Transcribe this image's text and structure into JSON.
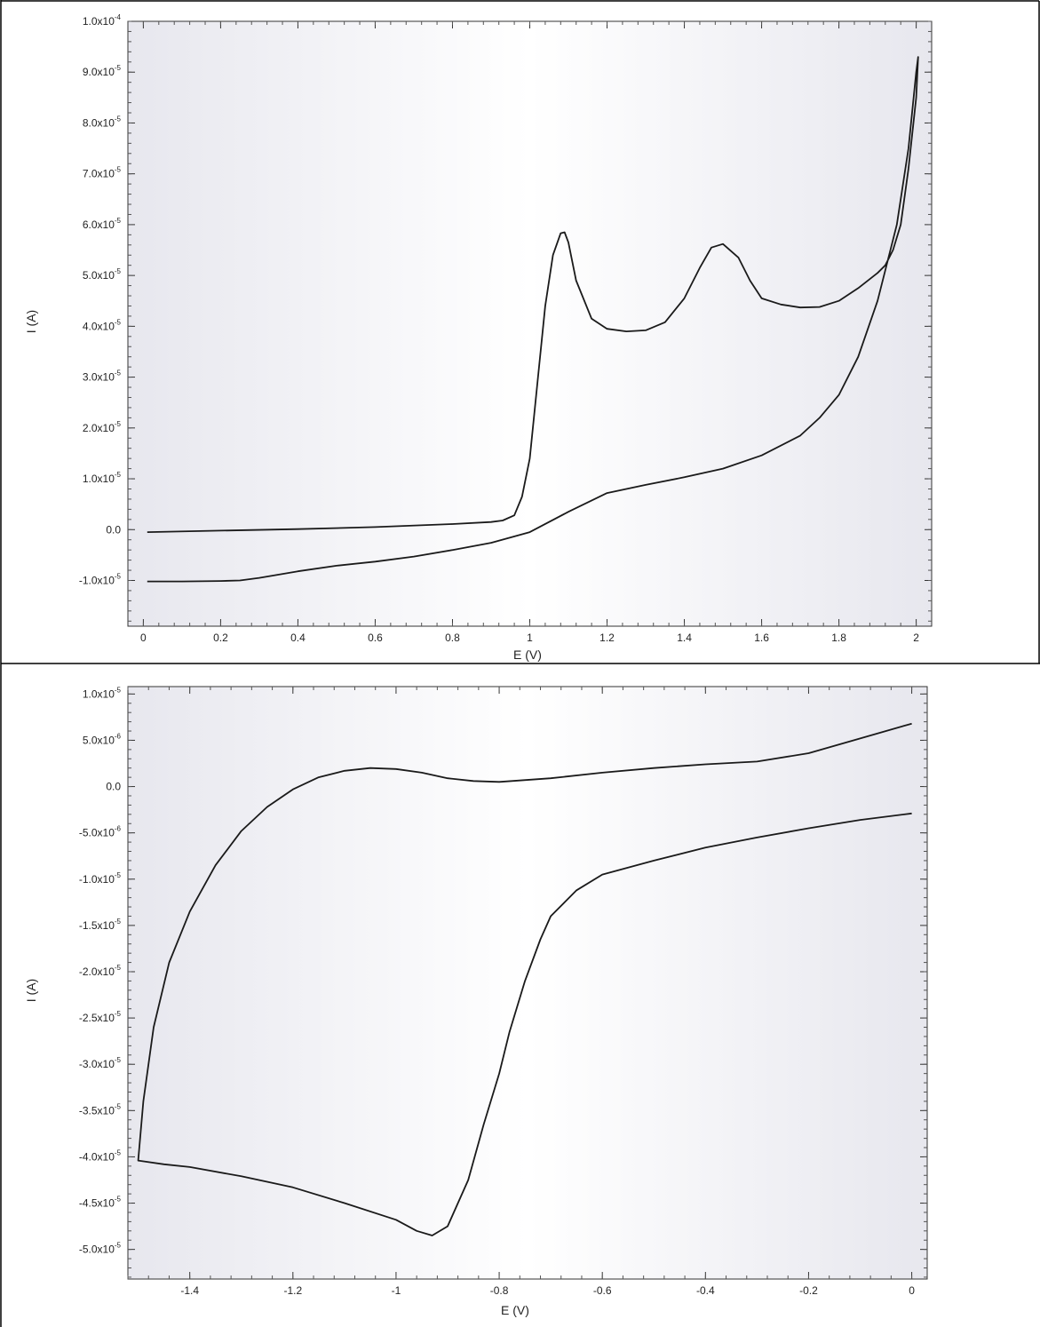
{
  "chart_data": [
    {
      "type": "line",
      "xlabel": "E (V)",
      "ylabel": "I (A)",
      "xlim": [
        -0.04,
        2.04
      ],
      "ylim": [
        -1.9e-05,
        0.0001
      ],
      "x_ticks": [
        {
          "value": 0,
          "label": "0"
        },
        {
          "value": 0.2,
          "label": "0.2"
        },
        {
          "value": 0.4,
          "label": "0.4"
        },
        {
          "value": 0.6,
          "label": "0.6"
        },
        {
          "value": 0.8,
          "label": "0.8"
        },
        {
          "value": 1,
          "label": "1"
        },
        {
          "value": 1.2,
          "label": "1.2"
        },
        {
          "value": 1.4,
          "label": "1.4"
        },
        {
          "value": 1.6,
          "label": "1.6"
        },
        {
          "value": 1.8,
          "label": "1.8"
        },
        {
          "value": 2,
          "label": "2"
        }
      ],
      "y_ticks": [
        {
          "value": -1e-05,
          "label": "-1.0x10",
          "exp": "-5"
        },
        {
          "value": 0,
          "label": "0.0",
          "exp": ""
        },
        {
          "value": 1e-05,
          "label": "1.0x10",
          "exp": "-5"
        },
        {
          "value": 2e-05,
          "label": "2.0x10",
          "exp": "-5"
        },
        {
          "value": 3e-05,
          "label": "3.0x10",
          "exp": "-5"
        },
        {
          "value": 4e-05,
          "label": "4.0x10",
          "exp": "-5"
        },
        {
          "value": 5e-05,
          "label": "5.0x10",
          "exp": "-5"
        },
        {
          "value": 6e-05,
          "label": "6.0x10",
          "exp": "-5"
        },
        {
          "value": 7e-05,
          "label": "7.0x10",
          "exp": "-5"
        },
        {
          "value": 8e-05,
          "label": "8.0x10",
          "exp": "-5"
        },
        {
          "value": 9e-05,
          "label": "9.0x10",
          "exp": "-5"
        },
        {
          "value": 0.0001,
          "label": "1.0x10",
          "exp": "-4"
        }
      ],
      "series": [
        {
          "points": [
            [
              0.01,
              -1.02e-05
            ],
            [
              0.1,
              -1.02e-05
            ],
            [
              0.2,
              -1.01e-05
            ],
            [
              0.25,
              -1e-05
            ],
            [
              0.3,
              -9.5e-06
            ],
            [
              0.4,
              -8.2e-06
            ],
            [
              0.5,
              -7.1e-06
            ],
            [
              0.6,
              -6.3e-06
            ],
            [
              0.7,
              -5.3e-06
            ],
            [
              0.8,
              -4e-06
            ],
            [
              0.9,
              -2.6e-06
            ],
            [
              1.0,
              -5e-07
            ],
            [
              1.1,
              3.5e-06
            ],
            [
              1.2,
              7.2e-06
            ],
            [
              1.3,
              8.8e-06
            ],
            [
              1.4,
              1.03e-05
            ],
            [
              1.5,
              1.2e-05
            ],
            [
              1.6,
              1.46e-05
            ],
            [
              1.7,
              1.85e-05
            ],
            [
              1.75,
              2.2e-05
            ],
            [
              1.8,
              2.65e-05
            ],
            [
              1.85,
              3.4e-05
            ],
            [
              1.9,
              4.5e-05
            ],
            [
              1.95,
              6e-05
            ],
            [
              1.98,
              7.5e-05
            ],
            [
              2.0,
              9e-05
            ],
            [
              2.005,
              9.3e-05
            ],
            [
              2.0,
              8.5e-05
            ],
            [
              1.98,
              7.1e-05
            ],
            [
              1.96,
              6e-05
            ],
            [
              1.94,
              5.5e-05
            ],
            [
              1.92,
              5.2e-05
            ],
            [
              1.9,
              5.05e-05
            ],
            [
              1.85,
              4.75e-05
            ],
            [
              1.8,
              4.5e-05
            ],
            [
              1.75,
              4.38e-05
            ],
            [
              1.7,
              4.37e-05
            ],
            [
              1.65,
              4.43e-05
            ],
            [
              1.6,
              4.55e-05
            ],
            [
              1.57,
              4.9e-05
            ],
            [
              1.54,
              5.35e-05
            ],
            [
              1.5,
              5.62e-05
            ],
            [
              1.47,
              5.55e-05
            ],
            [
              1.44,
              5.15e-05
            ],
            [
              1.4,
              4.55e-05
            ],
            [
              1.35,
              4.08e-05
            ],
            [
              1.3,
              3.92e-05
            ],
            [
              1.25,
              3.9e-05
            ],
            [
              1.2,
              3.95e-05
            ],
            [
              1.16,
              4.15e-05
            ],
            [
              1.12,
              4.9e-05
            ],
            [
              1.1,
              5.65e-05
            ],
            [
              1.09,
              5.85e-05
            ],
            [
              1.08,
              5.83e-05
            ],
            [
              1.06,
              5.4e-05
            ],
            [
              1.04,
              4.4e-05
            ],
            [
              1.02,
              2.9e-05
            ],
            [
              1.0,
              1.4e-05
            ],
            [
              0.98,
              6.5e-06
            ],
            [
              0.96,
              2.8e-06
            ],
            [
              0.93,
              1.8e-06
            ],
            [
              0.9,
              1.5e-06
            ],
            [
              0.8,
              1.1e-06
            ],
            [
              0.6,
              5e-07
            ],
            [
              0.4,
              1e-07
            ],
            [
              0.2,
              -2e-07
            ],
            [
              0.01,
              -5e-07
            ]
          ]
        }
      ]
    },
    {
      "type": "line",
      "xlabel": "E (V)",
      "ylabel": "I (A)",
      "xlim": [
        -1.52,
        0.03
      ],
      "ylim": [
        -5.32e-05,
        1.08e-05
      ],
      "x_ticks": [
        {
          "value": -1.4,
          "label": "-1.4"
        },
        {
          "value": -1.2,
          "label": "-1.2"
        },
        {
          "value": -1,
          "label": "-1"
        },
        {
          "value": -0.8,
          "label": "-0.8"
        },
        {
          "value": -0.6,
          "label": "-0.6"
        },
        {
          "value": -0.4,
          "label": "-0.4"
        },
        {
          "value": -0.2,
          "label": "-0.2"
        },
        {
          "value": 0,
          "label": "0"
        }
      ],
      "y_ticks": [
        {
          "value": 1e-05,
          "label": "1.0x10",
          "exp": "-5"
        },
        {
          "value": 5e-06,
          "label": "5.0x10",
          "exp": "-6"
        },
        {
          "value": 0,
          "label": "0.0",
          "exp": ""
        },
        {
          "value": -5e-06,
          "label": "-5.0x10",
          "exp": "-6"
        },
        {
          "value": -1e-05,
          "label": "-1.0x10",
          "exp": "-5"
        },
        {
          "value": -1.5e-05,
          "label": "-1.5x10",
          "exp": "-5"
        },
        {
          "value": -2e-05,
          "label": "-2.0x10",
          "exp": "-5"
        },
        {
          "value": -2.5e-05,
          "label": "-2.5x10",
          "exp": "-5"
        },
        {
          "value": -3e-05,
          "label": "-3.0x10",
          "exp": "-5"
        },
        {
          "value": -3.5e-05,
          "label": "-3.5x10",
          "exp": "-5"
        },
        {
          "value": -4e-05,
          "label": "-4.0x10",
          "exp": "-5"
        },
        {
          "value": -4.5e-05,
          "label": "-4.5x10",
          "exp": "-5"
        },
        {
          "value": -5e-05,
          "label": "-5.0x10",
          "exp": "-5"
        }
      ],
      "series": [
        {
          "points": [
            [
              0.0,
              -2.9e-06
            ],
            [
              -0.1,
              -3.6e-06
            ],
            [
              -0.2,
              -4.5e-06
            ],
            [
              -0.3,
              -5.5e-06
            ],
            [
              -0.4,
              -6.6e-06
            ],
            [
              -0.5,
              -8e-06
            ],
            [
              -0.6,
              -9.5e-06
            ],
            [
              -0.65,
              -1.12e-05
            ],
            [
              -0.7,
              -1.4e-05
            ],
            [
              -0.72,
              -1.65e-05
            ],
            [
              -0.75,
              -2.1e-05
            ],
            [
              -0.78,
              -2.65e-05
            ],
            [
              -0.8,
              -3.1e-05
            ],
            [
              -0.83,
              -3.65e-05
            ],
            [
              -0.86,
              -4.25e-05
            ],
            [
              -0.9,
              -4.75e-05
            ],
            [
              -0.93,
              -4.85e-05
            ],
            [
              -0.96,
              -4.8e-05
            ],
            [
              -1.0,
              -4.68e-05
            ],
            [
              -1.1,
              -4.5e-05
            ],
            [
              -1.2,
              -4.33e-05
            ],
            [
              -1.3,
              -4.21e-05
            ],
            [
              -1.4,
              -4.11e-05
            ],
            [
              -1.45,
              -4.08e-05
            ],
            [
              -1.5,
              -4.04e-05
            ],
            [
              -1.49,
              -3.4e-05
            ],
            [
              -1.47,
              -2.6e-05
            ],
            [
              -1.44,
              -1.9e-05
            ],
            [
              -1.4,
              -1.35e-05
            ],
            [
              -1.35,
              -8.5e-06
            ],
            [
              -1.3,
              -4.8e-06
            ],
            [
              -1.25,
              -2.2e-06
            ],
            [
              -1.2,
              -3e-07
            ],
            [
              -1.15,
              1e-06
            ],
            [
              -1.1,
              1.7e-06
            ],
            [
              -1.05,
              2e-06
            ],
            [
              -1.0,
              1.9e-06
            ],
            [
              -0.95,
              1.5e-06
            ],
            [
              -0.9,
              9e-07
            ],
            [
              -0.85,
              6e-07
            ],
            [
              -0.8,
              5e-07
            ],
            [
              -0.7,
              9e-07
            ],
            [
              -0.6,
              1.5e-06
            ],
            [
              -0.5,
              2e-06
            ],
            [
              -0.4,
              2.4e-06
            ],
            [
              -0.3,
              2.7e-06
            ],
            [
              -0.2,
              3.6e-06
            ],
            [
              -0.1,
              5.2e-06
            ],
            [
              0.0,
              6.8e-06
            ]
          ]
        }
      ]
    }
  ]
}
